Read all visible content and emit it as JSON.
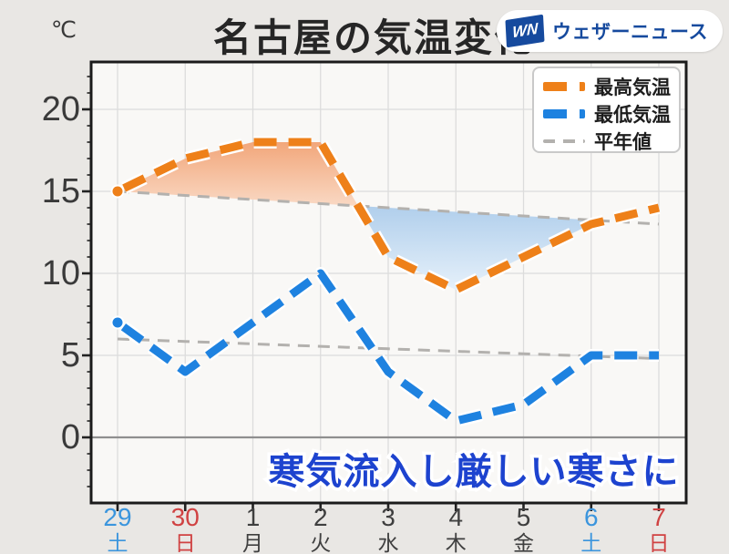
{
  "title": "名古屋の気温変化",
  "y_unit": "℃",
  "logo": {
    "mark": "WN",
    "name": "ウェザーニュース"
  },
  "legend": {
    "items": [
      {
        "label": "最高気温",
        "color": "#ee8019",
        "thick": true
      },
      {
        "label": "最低気温",
        "color": "#1e82e0",
        "thick": true
      },
      {
        "label": "平年値",
        "color": "#b3b1ae",
        "thick": false
      }
    ]
  },
  "annotation": {
    "text": "寒気流入し厳しい寒さに",
    "color": "#1d43cf"
  },
  "chart_data": {
    "type": "line",
    "title": "名古屋の気温変化",
    "ylabel": "℃",
    "ylim": [
      -4,
      23
    ],
    "yticks": [
      0,
      5,
      10,
      15,
      20
    ],
    "grid": true,
    "legend_position": "top-right",
    "x_categories": [
      {
        "date": "29",
        "weekday": "土",
        "color": "#3b95dd"
      },
      {
        "date": "30",
        "weekday": "日",
        "color": "#d04242"
      },
      {
        "date": "1",
        "weekday": "月",
        "color": "#3f3f3f"
      },
      {
        "date": "2",
        "weekday": "火",
        "color": "#3f3f3f"
      },
      {
        "date": "3",
        "weekday": "水",
        "color": "#3f3f3f"
      },
      {
        "date": "4",
        "weekday": "木",
        "color": "#3f3f3f"
      },
      {
        "date": "5",
        "weekday": "金",
        "color": "#3f3f3f"
      },
      {
        "date": "6",
        "weekday": "土",
        "color": "#3b95dd"
      },
      {
        "date": "7",
        "weekday": "日",
        "color": "#d04242"
      }
    ],
    "series": [
      {
        "name": "最高気温",
        "style": "thick-dash",
        "color": "#ee8019",
        "values": [
          15,
          17,
          18,
          18,
          11,
          9,
          11,
          13,
          14
        ]
      },
      {
        "name": "最低気温",
        "style": "thick-dash",
        "color": "#1e82e0",
        "values": [
          7,
          4,
          7,
          10,
          4,
          1,
          2,
          5,
          5
        ]
      },
      {
        "name": "平年値(最高)",
        "style": "thin-dash",
        "color": "#b3b1ae",
        "values": [
          15,
          14.75,
          14.5,
          14.25,
          14,
          13.75,
          13.5,
          13.25,
          13
        ]
      },
      {
        "name": "平年値(最低)",
        "style": "thin-dash",
        "color": "#b3b1ae",
        "values": [
          6,
          5.85,
          5.7,
          5.55,
          5.4,
          5.25,
          5.1,
          4.95,
          4.8
        ]
      }
    ],
    "fills": [
      {
        "area": "最高気温 above 平年値(最高)",
        "gradient": [
          "#f1a274",
          "#fdeee3"
        ]
      },
      {
        "area": "最高気温 below 平年値(最高)",
        "gradient": [
          "#aecdeb",
          "#e8f2fb"
        ]
      }
    ]
  },
  "colors": {
    "background": "#e9e7e4",
    "plot_background": "#f9f8f6",
    "grid": "#dcdcdc",
    "zero_line": "#8f8f8f",
    "frame": "#1b1b1b"
  }
}
